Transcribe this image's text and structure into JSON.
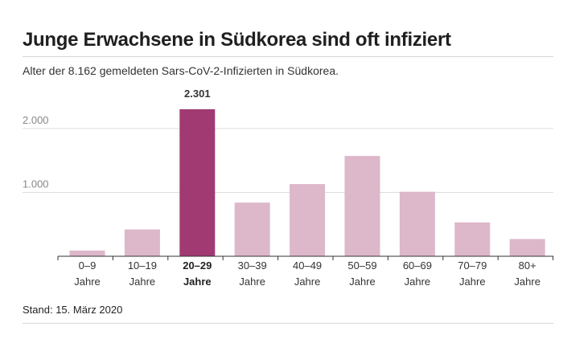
{
  "chart_data": {
    "type": "bar",
    "title": "Junge Erwachsene in Südkorea sind oft infiziert",
    "subtitle": "Alter der 8.162 gemeldeten Sars-CoV-2-Infizierten in Südkorea.",
    "footer": "Stand: 15. März 2020",
    "categories": [
      [
        "0–9",
        "Jahre"
      ],
      [
        "10–19",
        "Jahre"
      ],
      [
        "20–29",
        "Jahre"
      ],
      [
        "30–39",
        "Jahre"
      ],
      [
        "40–49",
        "Jahre"
      ],
      [
        "50–59",
        "Jahre"
      ],
      [
        "60–69",
        "Jahre"
      ],
      [
        "70–79",
        "Jahre"
      ],
      [
        "80+",
        "Jahre"
      ]
    ],
    "values": [
      90,
      420,
      2301,
      840,
      1130,
      1570,
      1010,
      530,
      270
    ],
    "highlight_index": 2,
    "highlight_label": "2.301",
    "yticks": [
      {
        "value": 1000,
        "label": "1.000"
      },
      {
        "value": 2000,
        "label": "2.000"
      }
    ],
    "ylim": [
      0,
      2301
    ],
    "colors": {
      "bar": "#ddb7ca",
      "highlight": "#a13a72",
      "grid": "#dddddd",
      "axis": "#333333"
    }
  }
}
